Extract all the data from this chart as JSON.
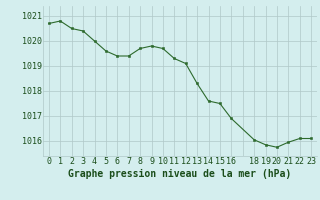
{
  "x": [
    0,
    1,
    2,
    3,
    4,
    5,
    6,
    7,
    8,
    9,
    10,
    11,
    12,
    13,
    14,
    15,
    16,
    18,
    19,
    20,
    21,
    22,
    23
  ],
  "y": [
    1020.7,
    1020.8,
    1020.5,
    1020.4,
    1020.0,
    1019.6,
    1019.4,
    1019.4,
    1019.7,
    1019.8,
    1019.7,
    1019.3,
    1019.1,
    1018.3,
    1017.6,
    1017.5,
    1016.9,
    1016.05,
    1015.85,
    1015.75,
    1015.95,
    1016.1,
    1016.1
  ],
  "line_color": "#2d6a2d",
  "marker_color": "#2d6a2d",
  "bg_color": "#d4eeee",
  "grid_color": "#b0c8c8",
  "ylabel_ticks": [
    1016,
    1017,
    1018,
    1019,
    1020,
    1021
  ],
  "xtick_labels": [
    "0",
    "1",
    "2",
    "3",
    "4",
    "5",
    "6",
    "7",
    "8",
    "9",
    "10",
    "11",
    "12",
    "13",
    "14",
    "15",
    "16",
    "",
    "18",
    "19",
    "20",
    "21",
    "22",
    "23"
  ],
  "xtick_positions": [
    0,
    1,
    2,
    3,
    4,
    5,
    6,
    7,
    8,
    9,
    10,
    11,
    12,
    13,
    14,
    15,
    16,
    17,
    18,
    19,
    20,
    21,
    22,
    23
  ],
  "xlabel": "Graphe pression niveau de la mer (hPa)",
  "ylim": [
    1015.4,
    1021.4
  ],
  "xlim": [
    -0.5,
    23.5
  ],
  "title_color": "#1a4d1a",
  "xlabel_fontsize": 7,
  "tick_fontsize": 6
}
